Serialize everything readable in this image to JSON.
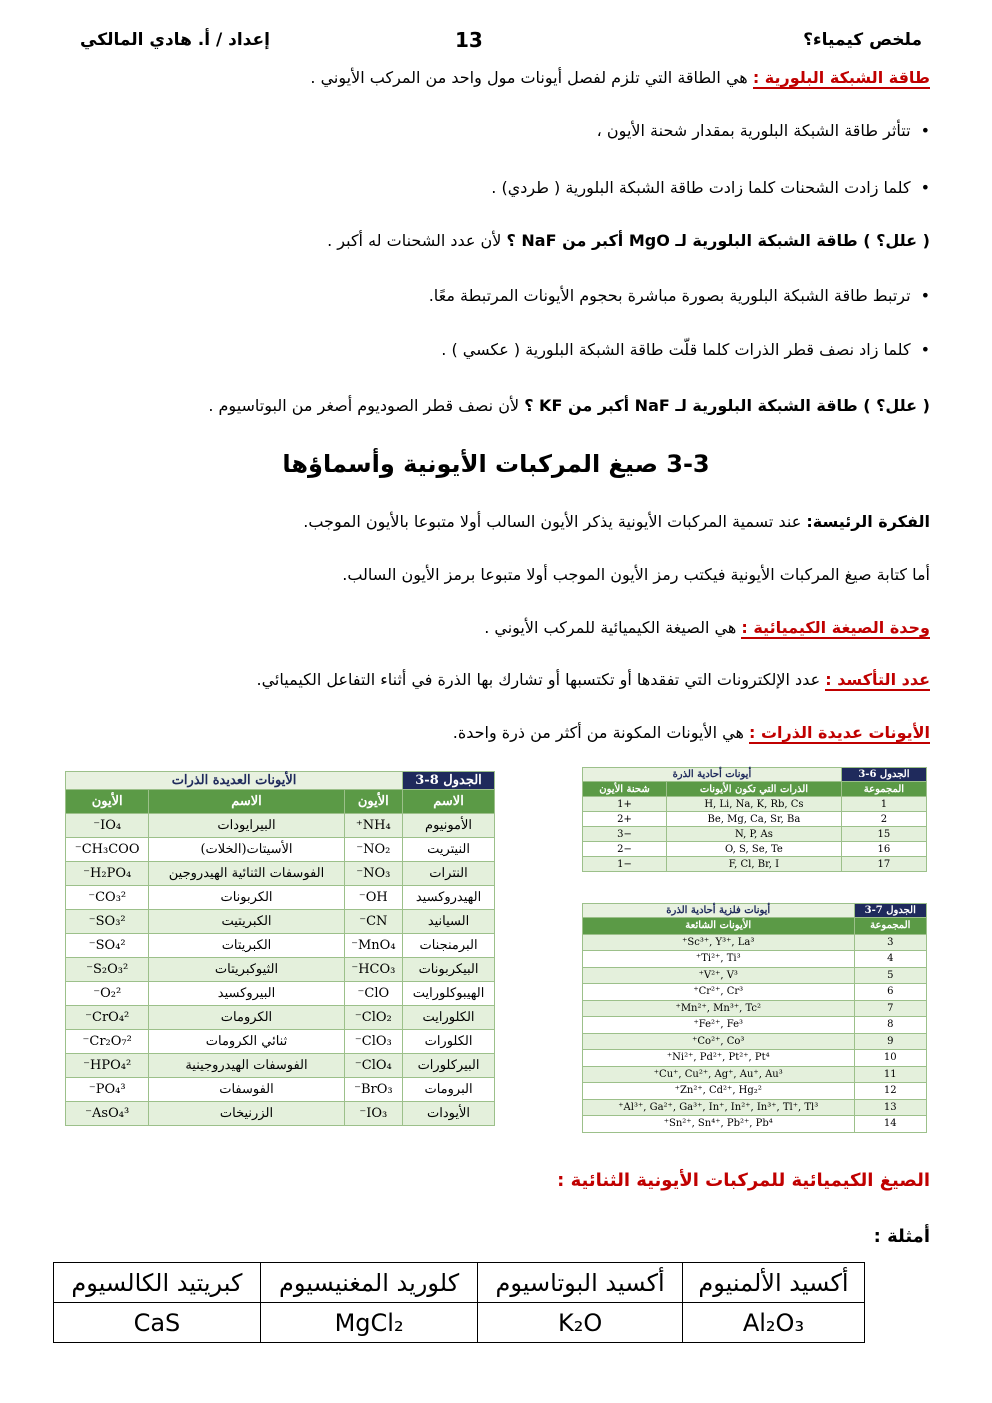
{
  "header": {
    "author": "إعداد / أ. هادي المالكي",
    "page_number": "13",
    "subject": "ملخص كيمياء؟"
  },
  "lines": [
    {
      "term": "طاقة الشبكة البلورية :",
      "text": "هي الطاقة التي تلزم لفصل أيونات مول واحد من المركب الأيوني ."
    },
    {
      "bullet": "تتأثر طاقة الشبكة البلورية بمقدار شحنة الأيون ،"
    },
    {
      "bullet": "كلما زادت الشحنات كلما زادت طاقة الشبكة البلورية ( طردي) ."
    },
    {
      "question": "( علل؟ ) طاقة الشبكة البلورية لـ MgO أكبر من NaF ؟",
      "text": "لأن عدد الشحنات له أكبر ."
    },
    {
      "bullet": "ترتبط طاقة الشبكة البلورية بصورة مباشرة بحجوم الأيونات المرتبطة معًا."
    },
    {
      "bullet": "كلما زاد نصف قطر الذرات كلما قلّت طاقة الشبكة البلورية ( عكسي ) ."
    },
    {
      "question": "( علل؟ ) طاقة الشبكة البلورية لـ NaF أكبر من KF ؟",
      "text": "لأن نصف قطر الصوديوم أصغر من البوتاسيوم ."
    },
    {
      "heading": "3-3 صيغ المركبات الأيونية وأسماؤها"
    },
    {
      "question": "الفكرة الرئيسة:",
      "text": "عند تسمية المركبات الأيونية يذكر الأيون السالب أولا متبوعا بالأيون الموجب."
    },
    {
      "text": "أما كتابة صيغ المركبات الأيونية فيكتب رمز الأيون الموجب أولا متبوعا برمز الأيون السالب."
    },
    {
      "term": "وحدة الصيغة الكيميائية :",
      "text": "هي الصيغة الكيميائية للمركب الأيوني ."
    },
    {
      "term": "عدد التأكسد :",
      "text": "عدد الإلكترونات التي تفقدها أو تكتسبها أو تشارك بها الذرة في أثناء التفاعل الكيميائي."
    },
    {
      "term": "الأيونات عديدة الذرات :",
      "text": "هي الأيونات المكونة من أكثر من ذرة واحدة."
    }
  ],
  "table_8_3": {
    "title": "الجدول 8-3",
    "subtitle": "الأيونات العديدة الذرات",
    "headers": [
      "الاسم",
      "الأيون",
      "الاسم",
      "الأيون"
    ],
    "rows": [
      [
        "الأمونيوم",
        "NH₄⁺",
        "البيرايودات",
        "IO₄⁻"
      ],
      [
        "النيتريت",
        "NO₂⁻",
        "الأسيتات(الخلات)",
        "CH₃COO⁻"
      ],
      [
        "النترات",
        "NO₃⁻",
        "الفوسفات الثنائية الهيدروجين",
        "H₂PO₄⁻"
      ],
      [
        "الهيدروكسيد",
        "OH⁻",
        "الكربونات",
        "CO₃²⁻"
      ],
      [
        "السيانيد",
        "CN⁻",
        "الكبريتيت",
        "SO₃²⁻"
      ],
      [
        "البرمنجنات",
        "MnO₄⁻",
        "الكبريتات",
        "SO₄²⁻"
      ],
      [
        "البيكربونات",
        "HCO₃⁻",
        "الثيوكبريتات",
        "S₂O₃²⁻"
      ],
      [
        "الهيبوكلورايت",
        "ClO⁻",
        "البيروكسيد",
        "O₂²⁻"
      ],
      [
        "الكلورايت",
        "ClO₂⁻",
        "الكرومات",
        "CrO₄²⁻"
      ],
      [
        "الكلورات",
        "ClO₃⁻",
        "ثنائي الكرومات",
        "Cr₂O₇²⁻"
      ],
      [
        "البيركلورات",
        "ClO₄⁻",
        "الفوسفات الهيدروجينية",
        "HPO₄²⁻"
      ],
      [
        "البرومات",
        "BrO₃⁻",
        "الفوسفات",
        "PO₄³⁻"
      ],
      [
        "الأيودات",
        "IO₃⁻",
        "الزرنيخات",
        "AsO₄³⁻"
      ]
    ]
  },
  "table_6_3": {
    "title": "الجدول 6-3",
    "subtitle": "أيونات أحادية الذرة",
    "headers": [
      "المجموعة",
      "الذرات التي تكون الأيونات",
      "شحنة الأيون"
    ],
    "rows": [
      [
        "1",
        "H, Li, Na, K, Rb, Cs",
        "+1"
      ],
      [
        "2",
        "Be, Mg, Ca, Sr, Ba",
        "+2"
      ],
      [
        "15",
        "N, P, As",
        "−3"
      ],
      [
        "16",
        "O, S, Se, Te",
        "−2"
      ],
      [
        "17",
        "F, Cl, Br, I",
        "−1"
      ]
    ]
  },
  "table_7_3": {
    "title": "الجدول 7-3",
    "subtitle": "أيونات فلزية أحادية الذرة",
    "headers": [
      "المجموعة",
      "الأيونات الشائعة"
    ],
    "rows": [
      [
        "3",
        "Sc³⁺, Y³⁺, La³⁺"
      ],
      [
        "4",
        "Ti²⁺, Ti³⁺"
      ],
      [
        "5",
        "V²⁺, V³⁺"
      ],
      [
        "6",
        "Cr²⁺, Cr³⁺"
      ],
      [
        "7",
        "Mn²⁺, Mn³⁺, Tc²⁺"
      ],
      [
        "8",
        "Fe²⁺, Fe³⁺"
      ],
      [
        "9",
        "Co²⁺, Co³⁺"
      ],
      [
        "10",
        "Ni²⁺, Pd²⁺, Pt²⁺, Pt⁴⁺"
      ],
      [
        "11",
        "Cu⁺, Cu²⁺, Ag⁺, Au⁺, Au³⁺"
      ],
      [
        "12",
        "Zn²⁺, Cd²⁺, Hg₂²⁺"
      ],
      [
        "13",
        "Al³⁺, Ga²⁺, Ga³⁺, In⁺, In²⁺, In³⁺, Tl⁺, Tl³⁺"
      ],
      [
        "14",
        "Sn²⁺, Sn⁴⁺, Pb²⁺, Pb⁴⁺"
      ]
    ]
  },
  "binary_heading": "الصيغ الكيميائية للمركبات الأيونية الثنائية :",
  "examples_label": "أمثلة :",
  "examples": {
    "headers": [
      "أكسيد الألمنيوم",
      "أكسيد البوتاسيوم",
      "كلوريد المغنيسيوم",
      "كبريتيد الكالسيوم"
    ],
    "formulas": [
      "Al₂O₃",
      "K₂O",
      "MgCl₂",
      "CaS"
    ]
  }
}
